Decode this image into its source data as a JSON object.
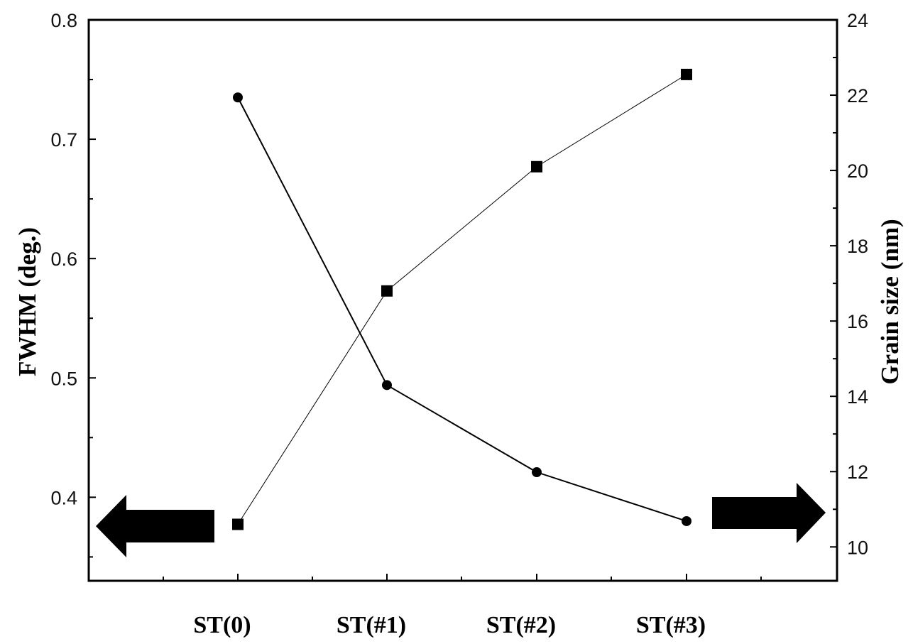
{
  "chart_data": {
    "type": "line",
    "categories": [
      "ST(0)",
      "ST(#1)",
      "ST(#2)",
      "ST(#3)"
    ],
    "y_left": {
      "label": "FWHM (deg.)",
      "ticks": [
        "0.4",
        "0.5",
        "0.6",
        "0.7",
        "0.8"
      ],
      "ylim": [
        0.33,
        0.8
      ]
    },
    "y_right": {
      "label": "Grain size (nm)",
      "ticks": [
        "10",
        "12",
        "14",
        "16",
        "18",
        "20",
        "22",
        "24"
      ],
      "ylim": [
        9.1,
        24
      ]
    },
    "series": [
      {
        "axis": "left",
        "marker": "circle",
        "values": [
          0.735,
          0.494,
          0.421,
          0.38
        ]
      },
      {
        "axis": "right",
        "marker": "square",
        "values": [
          10.6,
          16.8,
          20.1,
          22.55
        ]
      }
    ],
    "annotations": [
      {
        "shape": "arrow-left",
        "meaning": "points to left axis"
      },
      {
        "shape": "arrow-right",
        "meaning": "points to right axis"
      }
    ],
    "grid": false,
    "legend": "none"
  }
}
